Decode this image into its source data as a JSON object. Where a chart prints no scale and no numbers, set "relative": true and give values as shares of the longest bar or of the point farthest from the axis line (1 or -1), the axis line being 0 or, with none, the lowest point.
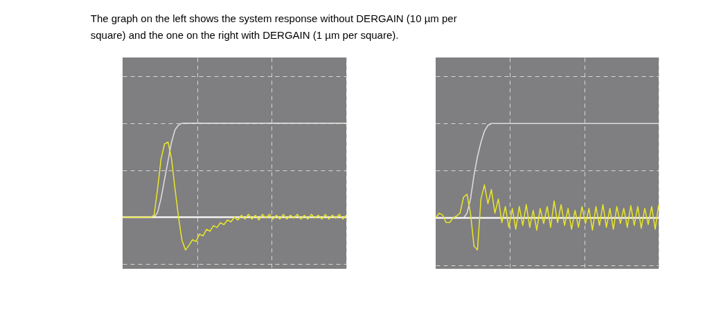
{
  "chart_data": [
    {
      "type": "line",
      "title": "The graph on the left shows the system response without DERGAIN (10 µm per square) and the one on the right with DERGAIN (1 µm per square).",
      "relative": true,
      "grid": true,
      "tick_labels": false,
      "categories": [
        null,
        null,
        null,
        null,
        null,
        null,
        null,
        null,
        null,
        null,
        null,
        null,
        null,
        null,
        null,
        null,
        null,
        null,
        null,
        null,
        null,
        null,
        null,
        null,
        null,
        null,
        null,
        null,
        null,
        null,
        null,
        null,
        null,
        null,
        null,
        null,
        null,
        null,
        null,
        null,
        null,
        null,
        null,
        null,
        null,
        null,
        null,
        null,
        null,
        null,
        null,
        null,
        null,
        null,
        null,
        null,
        null,
        null,
        null,
        null,
        null,
        null,
        null,
        null,
        null
      ],
      "series": [
        {
          "color": "#dcdcdc",
          "values": [
            0,
            0,
            0,
            0,
            0,
            0,
            0,
            0,
            0,
            0,
            0.05,
            0.2,
            0.4,
            0.6,
            0.8,
            0.93,
            0.98,
            1,
            1,
            1,
            1,
            1,
            1,
            1,
            1,
            1,
            1,
            1,
            1,
            1,
            1,
            1,
            1,
            1,
            1,
            1,
            1,
            1,
            1,
            1,
            1,
            1,
            1,
            1,
            1,
            1,
            1,
            1,
            1,
            1,
            1,
            1,
            1,
            1,
            1,
            1,
            1,
            1,
            1,
            1,
            1,
            1,
            1,
            1,
            1
          ]
        },
        {
          "color": "#e6e42a",
          "values": [
            0,
            0,
            0,
            0,
            0,
            0,
            0,
            0,
            0,
            0.02,
            0.3,
            0.62,
            0.78,
            0.8,
            0.62,
            0.3,
            0,
            -0.25,
            -0.35,
            -0.3,
            -0.24,
            -0.26,
            -0.18,
            -0.2,
            -0.13,
            -0.15,
            -0.09,
            -0.11,
            -0.06,
            -0.08,
            -0.03,
            -0.05,
            0,
            -0.03,
            0.02,
            -0.02,
            0.03,
            -0.02,
            0.02,
            -0.03,
            0.03,
            -0.01,
            0.03,
            -0.02,
            0.02,
            -0.02,
            0.03,
            -0.02,
            0.02,
            -0.01,
            0.03,
            -0.02,
            0.02,
            -0.02,
            0.03,
            -0.01,
            0.02,
            -0.02,
            0.03,
            -0.02,
            0.02,
            -0.01,
            0.03,
            -0.02,
            0.02
          ]
        }
      ]
    },
    {
      "type": "line",
      "relative": true,
      "grid": true,
      "tick_labels": false,
      "categories": [
        null,
        null,
        null,
        null,
        null,
        null,
        null,
        null,
        null,
        null,
        null,
        null,
        null,
        null,
        null,
        null,
        null,
        null,
        null,
        null,
        null,
        null,
        null,
        null,
        null,
        null,
        null,
        null,
        null,
        null,
        null,
        null,
        null,
        null,
        null,
        null,
        null,
        null,
        null,
        null,
        null,
        null,
        null,
        null,
        null,
        null,
        null,
        null,
        null,
        null,
        null,
        null,
        null,
        null,
        null,
        null,
        null,
        null,
        null,
        null,
        null,
        null,
        null,
        null,
        null
      ],
      "series": [
        {
          "color": "#dcdcdc",
          "values": [
            0,
            0,
            0,
            0,
            0,
            0,
            0,
            0,
            0,
            0.05,
            0.2,
            0.45,
            0.65,
            0.8,
            0.92,
            0.98,
            1,
            1,
            1,
            1,
            1,
            1,
            1,
            1,
            1,
            1,
            1,
            1,
            1,
            1,
            1,
            1,
            1,
            1,
            1,
            1,
            1,
            1,
            1,
            1,
            1,
            1,
            1,
            1,
            1,
            1,
            1,
            1,
            1,
            1,
            1,
            1,
            1,
            1,
            1,
            1,
            1,
            1,
            1,
            1,
            1,
            1,
            1,
            1,
            1
          ]
        },
        {
          "color": "#e6e42a",
          "values": [
            0,
            0.05,
            0.03,
            -0.05,
            -0.05,
            0,
            0.02,
            0.05,
            0.22,
            0.25,
            0.05,
            -0.3,
            -0.34,
            0.2,
            0.35,
            0.15,
            0.3,
            0.05,
            0.2,
            -0.05,
            0.12,
            -0.1,
            0.1,
            -0.12,
            0.12,
            -0.08,
            0.14,
            -0.1,
            0.08,
            -0.13,
            0.1,
            -0.06,
            0.12,
            -0.1,
            0.18,
            -0.05,
            0.14,
            -0.08,
            0.1,
            -0.12,
            0.08,
            -0.1,
            0.12,
            -0.06,
            0.1,
            -0.13,
            0.12,
            -0.08,
            0.14,
            -0.1,
            0.1,
            -0.12,
            0.12,
            -0.06,
            0.1,
            -0.1,
            0.13,
            -0.08,
            0.12,
            -0.11,
            0.1,
            -0.07,
            0.12,
            -0.12,
            0.14
          ]
        }
      ]
    }
  ]
}
